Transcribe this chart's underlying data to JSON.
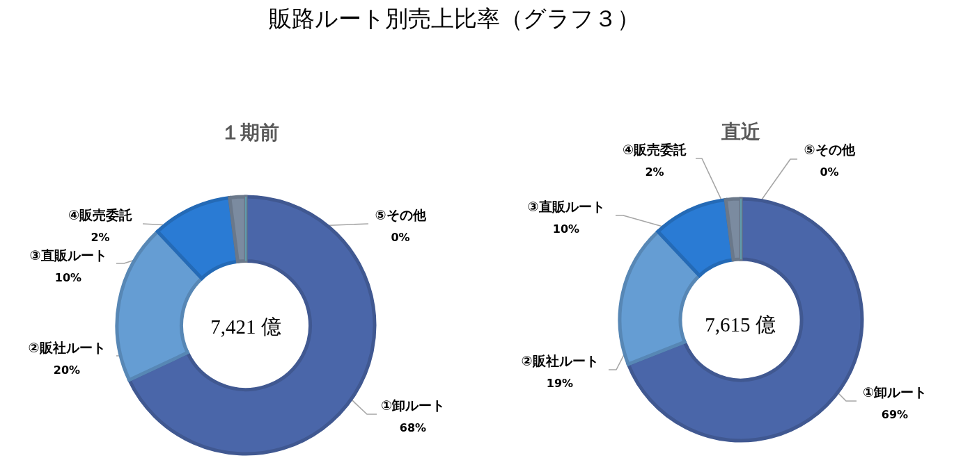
{
  "chart_data": [
    {
      "type": "donut",
      "title": "販路ルート別売上比率（グラフ３）",
      "subtitle": "１期前",
      "categories": [
        "①卸ルート",
        "②販社ルート",
        "③直販ルート",
        "④販売委託",
        "⑤その他"
      ],
      "values": [
        68,
        20,
        10,
        2,
        0
      ],
      "value_labels": [
        "68%",
        "20%",
        "10%",
        "2%",
        "0%"
      ],
      "colors": [
        "#4a66a9",
        "#659dd3",
        "#2a7bd4",
        "#7b8ba0",
        "#5aa9b9"
      ],
      "annotations": [
        "7,421 億"
      ]
    },
    {
      "type": "donut",
      "subtitle": "直近",
      "categories": [
        "①卸ルート",
        "②販社ルート",
        "③直販ルート",
        "④販売委託",
        "⑤その他"
      ],
      "values": [
        69,
        19,
        10,
        2,
        0
      ],
      "value_labels": [
        "69%",
        "19%",
        "10%",
        "2%",
        "0%"
      ],
      "colors": [
        "#4a66a9",
        "#659dd3",
        "#2a7bd4",
        "#7b8ba0",
        "#5aa9b9"
      ],
      "annotations": [
        "7,615 億"
      ]
    }
  ]
}
